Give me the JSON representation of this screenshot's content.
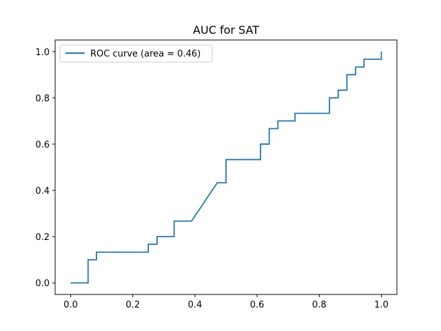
{
  "chart_data": {
    "type": "line",
    "title": "AUC for SAT",
    "xlabel": "",
    "ylabel": "",
    "xlim": [
      -0.05,
      1.05
    ],
    "ylim": [
      -0.05,
      1.05
    ],
    "xticks": [
      0.0,
      0.2,
      0.4,
      0.6,
      0.8,
      1.0
    ],
    "yticks": [
      0.0,
      0.2,
      0.4,
      0.6,
      0.8,
      1.0
    ],
    "xtick_labels": [
      "0.0",
      "0.2",
      "0.4",
      "0.6",
      "0.8",
      "1.0"
    ],
    "ytick_labels": [
      "0.0",
      "0.2",
      "0.4",
      "0.6",
      "0.8",
      "1.0"
    ],
    "grid": false,
    "legend_position": "top-left",
    "series": [
      {
        "name": "ROC curve (area = 0.46)",
        "color": "#1f77b4",
        "x": [
          0.0,
          0.056,
          0.056,
          0.083,
          0.083,
          0.25,
          0.25,
          0.278,
          0.278,
          0.333,
          0.333,
          0.389,
          0.472,
          0.5,
          0.5,
          0.611,
          0.611,
          0.639,
          0.639,
          0.667,
          0.667,
          0.722,
          0.722,
          0.833,
          0.833,
          0.861,
          0.861,
          0.889,
          0.889,
          0.917,
          0.917,
          0.944,
          0.944,
          1.0,
          1.0
        ],
        "y": [
          0.0,
          0.0,
          0.1,
          0.1,
          0.133,
          0.133,
          0.167,
          0.167,
          0.2,
          0.2,
          0.267,
          0.267,
          0.433,
          0.433,
          0.533,
          0.533,
          0.6,
          0.6,
          0.667,
          0.667,
          0.7,
          0.7,
          0.733,
          0.733,
          0.8,
          0.8,
          0.833,
          0.833,
          0.9,
          0.9,
          0.933,
          0.933,
          0.967,
          0.967,
          1.0
        ]
      }
    ]
  }
}
